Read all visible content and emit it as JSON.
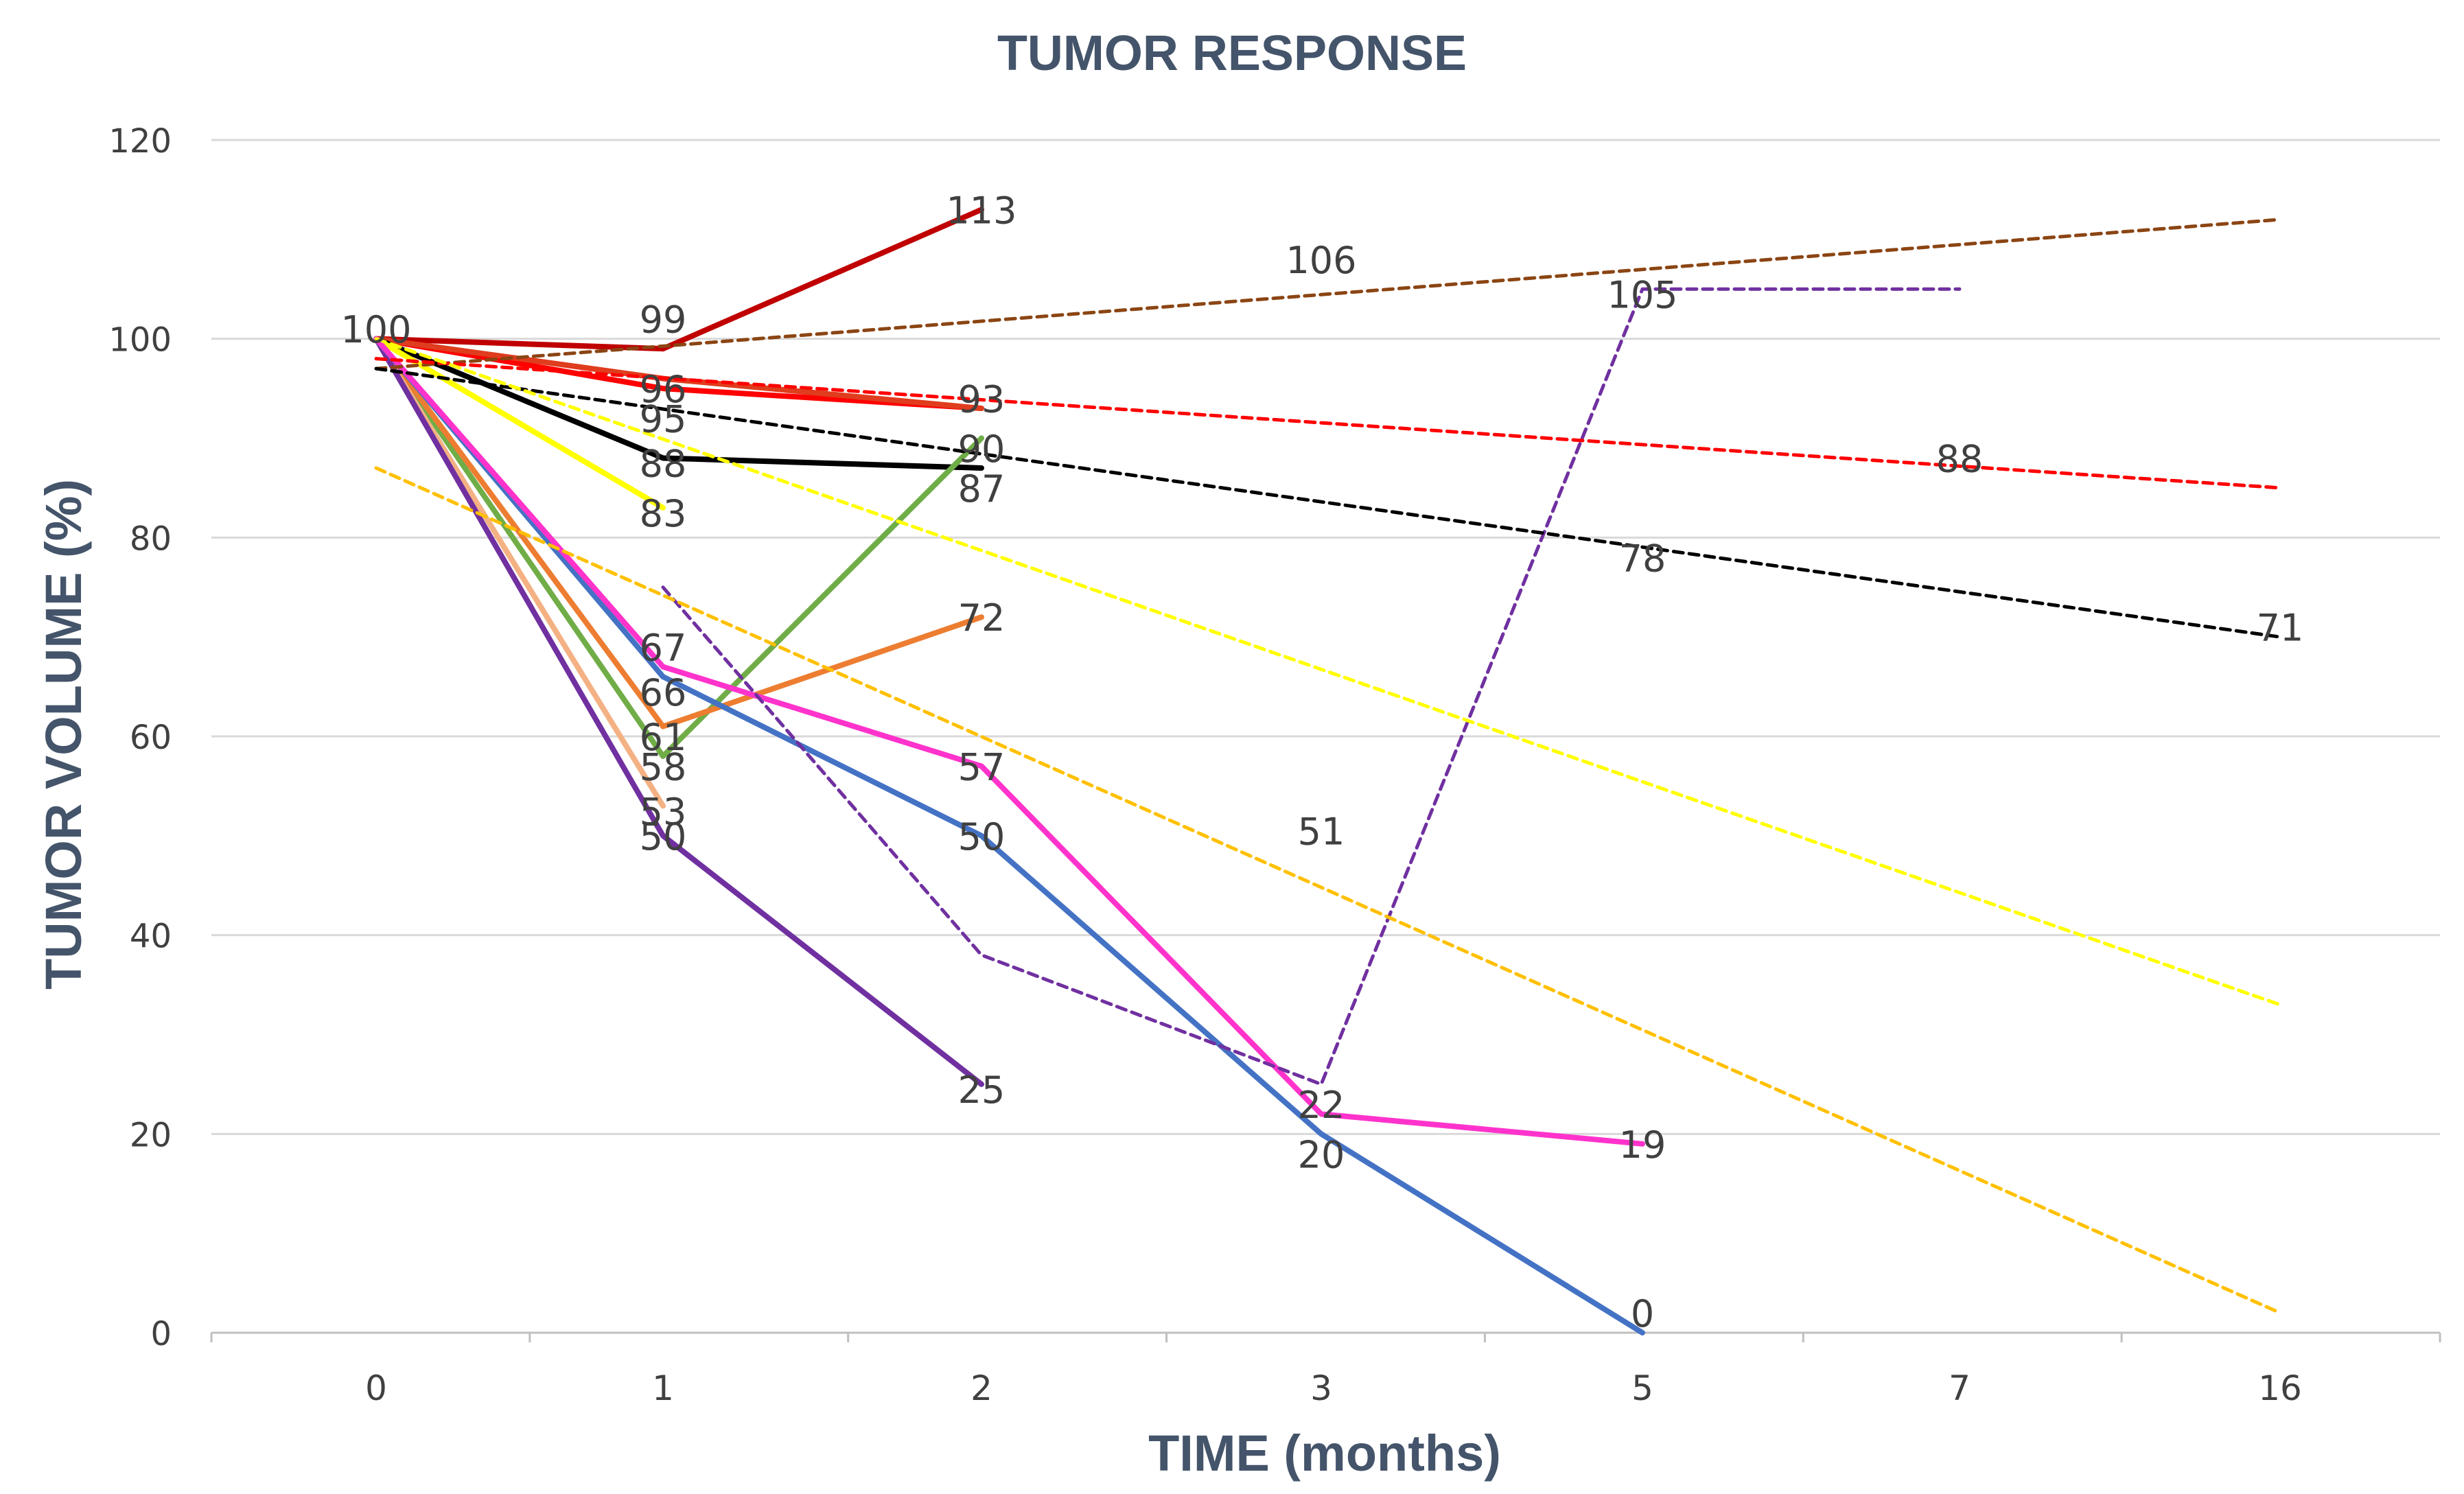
{
  "chart_data": {
    "type": "line",
    "title": "TUMOR RESPONSE",
    "xlabel": "TIME (months)",
    "ylabel": "TUMOR VOLUME (%)",
    "categories": [
      "0",
      "1",
      "2",
      "3",
      "5",
      "7",
      "16"
    ],
    "ylim": [
      0,
      120
    ],
    "yticks": [
      "0",
      "20",
      "40",
      "60",
      "80",
      "100",
      "120"
    ],
    "grid": true,
    "legend": "none",
    "series": [
      {
        "name": "dark-red",
        "color": "#C00000",
        "dashed": false,
        "values": [
          100,
          99,
          113,
          null,
          null,
          null,
          null
        ]
      },
      {
        "name": "red",
        "color": "#FF0000",
        "dashed": false,
        "values": [
          100,
          95,
          93,
          null,
          null,
          null,
          null
        ]
      },
      {
        "name": "dark-orange-red",
        "color": "#E03C1E",
        "dashed": false,
        "values": [
          100,
          96,
          93,
          null,
          null,
          null,
          null
        ]
      },
      {
        "name": "black",
        "color": "#000000",
        "dashed": false,
        "values": [
          100,
          88,
          87,
          null,
          null,
          null,
          null
        ]
      },
      {
        "name": "yellow",
        "color": "#FFFF00",
        "dashed": false,
        "values": [
          100,
          83,
          null,
          null,
          null,
          null,
          null
        ]
      },
      {
        "name": "green",
        "color": "#70AD47",
        "dashed": false,
        "values": [
          100,
          58,
          90,
          null,
          null,
          null,
          null
        ]
      },
      {
        "name": "orange",
        "color": "#ED7D31",
        "dashed": false,
        "values": [
          100,
          61,
          72,
          null,
          null,
          null,
          null
        ]
      },
      {
        "name": "tan",
        "color": "#F4B183",
        "dashed": false,
        "values": [
          100,
          53,
          null,
          null,
          null,
          null,
          null
        ]
      },
      {
        "name": "purple",
        "color": "#7030A0",
        "dashed": false,
        "values": [
          100,
          50,
          25,
          null,
          null,
          null,
          null
        ]
      },
      {
        "name": "blue",
        "color": "#4472C4",
        "dashed": false,
        "values": [
          100,
          66,
          50,
          20,
          0,
          null,
          null
        ]
      },
      {
        "name": "pink",
        "color": "#FF33CC",
        "dashed": false,
        "values": [
          100,
          67,
          57,
          22,
          19,
          null,
          null
        ]
      },
      {
        "name": "purple-dashed",
        "color": "#7030A0",
        "dashed": true,
        "values": [
          null,
          75,
          38,
          25,
          105,
          105,
          null
        ]
      },
      {
        "name": "brown-trend",
        "color": "#8B4513",
        "dashed": true,
        "values": [
          97,
          null,
          null,
          null,
          null,
          null,
          112
        ]
      },
      {
        "name": "red-trend",
        "color": "#FF0000",
        "dashed": true,
        "values": [
          98,
          null,
          null,
          null,
          null,
          null,
          85
        ]
      },
      {
        "name": "black-trend",
        "color": "#000000",
        "dashed": true,
        "values": [
          97,
          null,
          null,
          null,
          null,
          null,
          70
        ]
      },
      {
        "name": "yellow-trend",
        "color": "#FFFF00",
        "dashed": true,
        "values": [
          100,
          null,
          null,
          null,
          null,
          null,
          33
        ]
      },
      {
        "name": "light-orange-trend",
        "color": "#FFC000",
        "dashed": true,
        "values": [
          87,
          null,
          null,
          null,
          null,
          null,
          2
        ]
      }
    ],
    "data_labels": [
      {
        "text": "100",
        "x": 0,
        "y": 101
      },
      {
        "text": "99",
        "x": 1,
        "y": 102
      },
      {
        "text": "113",
        "x": 2,
        "y": 113
      },
      {
        "text": "96",
        "x": 1,
        "y": 95
      },
      {
        "text": "95",
        "x": 1,
        "y": 92
      },
      {
        "text": "93",
        "x": 2,
        "y": 94
      },
      {
        "text": "88",
        "x": 1,
        "y": 87.5
      },
      {
        "text": "90",
        "x": 2,
        "y": 89
      },
      {
        "text": "87",
        "x": 2,
        "y": 85
      },
      {
        "text": "83",
        "x": 1,
        "y": 82.5
      },
      {
        "text": "72",
        "x": 2,
        "y": 72
      },
      {
        "text": "67",
        "x": 1,
        "y": 69
      },
      {
        "text": "66",
        "x": 1,
        "y": 64.5
      },
      {
        "text": "61",
        "x": 1,
        "y": 60
      },
      {
        "text": "58",
        "x": 1,
        "y": 57
      },
      {
        "text": "53",
        "x": 1,
        "y": 52.5
      },
      {
        "text": "50",
        "x": 1,
        "y": 50
      },
      {
        "text": "57",
        "x": 2,
        "y": 57
      },
      {
        "text": "50",
        "x": 2,
        "y": 50
      },
      {
        "text": "25",
        "x": 2,
        "y": 24.5
      },
      {
        "text": "106",
        "x": 3,
        "y": 108
      },
      {
        "text": "51",
        "x": 3,
        "y": 50.5
      },
      {
        "text": "22",
        "x": 3,
        "y": 23
      },
      {
        "text": "20",
        "x": 3,
        "y": 18
      },
      {
        "text": "105",
        "x": 4,
        "y": 104.5
      },
      {
        "text": "78",
        "x": 4,
        "y": 78
      },
      {
        "text": "19",
        "x": 4,
        "y": 19
      },
      {
        "text": "0",
        "x": 4,
        "y": 2
      },
      {
        "text": "88",
        "x": 5,
        "y": 88
      },
      {
        "text": "71",
        "x": 6,
        "y": 71
      }
    ]
  }
}
